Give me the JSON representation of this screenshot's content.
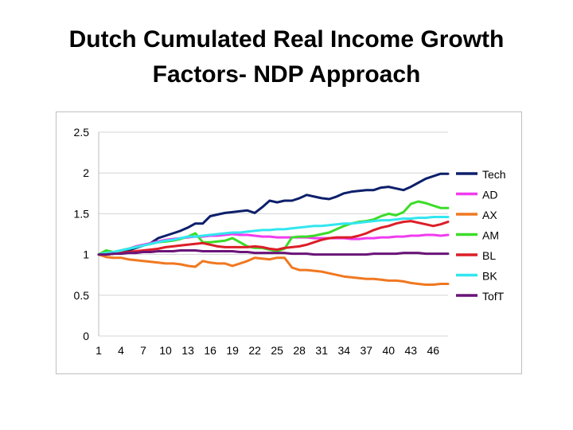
{
  "slide": {
    "title_line1": "Dutch Cumulated Real Income Growth",
    "title_line2": "Factors- NDP Approach"
  },
  "chart_data": {
    "type": "line",
    "title": "",
    "xlabel": "",
    "ylabel": "",
    "ylim": [
      0,
      2.5
    ],
    "yticks": [
      "0",
      "0.5",
      "1",
      "1.5",
      "2",
      "2.5"
    ],
    "grid": "horizontal",
    "legend_position": "right",
    "x": [
      1,
      2,
      3,
      4,
      5,
      6,
      7,
      8,
      9,
      10,
      11,
      12,
      13,
      14,
      15,
      16,
      17,
      18,
      19,
      20,
      21,
      22,
      23,
      24,
      25,
      26,
      27,
      28,
      29,
      30,
      31,
      32,
      33,
      34,
      35,
      36,
      37,
      38,
      39,
      40,
      41,
      42,
      43,
      44,
      45,
      46,
      47,
      48
    ],
    "xtick_labels": [
      "1",
      "4",
      "7",
      "10",
      "13",
      "16",
      "19",
      "22",
      "25",
      "28",
      "31",
      "34",
      "37",
      "40",
      "43",
      "46"
    ],
    "series": [
      {
        "name": "Tech",
        "color": "#0d1f6b",
        "values": [
          1.0,
          1.0,
          1.01,
          1.03,
          1.05,
          1.08,
          1.11,
          1.14,
          1.2,
          1.23,
          1.26,
          1.29,
          1.33,
          1.38,
          1.38,
          1.47,
          1.49,
          1.51,
          1.52,
          1.53,
          1.54,
          1.51,
          1.58,
          1.66,
          1.64,
          1.66,
          1.66,
          1.69,
          1.73,
          1.71,
          1.69,
          1.68,
          1.71,
          1.75,
          1.77,
          1.78,
          1.79,
          1.79,
          1.82,
          1.83,
          1.81,
          1.79,
          1.83,
          1.88,
          1.93,
          1.96,
          1.99,
          1.99
        ]
      },
      {
        "name": "AD",
        "color": "#f03cf0",
        "values": [
          1.0,
          1.02,
          1.03,
          1.05,
          1.07,
          1.1,
          1.12,
          1.14,
          1.16,
          1.18,
          1.19,
          1.2,
          1.21,
          1.22,
          1.22,
          1.23,
          1.23,
          1.24,
          1.25,
          1.24,
          1.24,
          1.23,
          1.22,
          1.22,
          1.21,
          1.21,
          1.21,
          1.21,
          1.21,
          1.2,
          1.2,
          1.2,
          1.2,
          1.2,
          1.19,
          1.19,
          1.2,
          1.2,
          1.21,
          1.21,
          1.22,
          1.22,
          1.23,
          1.23,
          1.24,
          1.24,
          1.23,
          1.24
        ]
      },
      {
        "name": "AX",
        "color": "#f07820",
        "values": [
          1.0,
          0.97,
          0.96,
          0.96,
          0.94,
          0.93,
          0.92,
          0.91,
          0.9,
          0.89,
          0.89,
          0.88,
          0.86,
          0.85,
          0.92,
          0.9,
          0.89,
          0.89,
          0.86,
          0.89,
          0.92,
          0.96,
          0.95,
          0.94,
          0.96,
          0.96,
          0.84,
          0.81,
          0.81,
          0.8,
          0.79,
          0.77,
          0.75,
          0.73,
          0.72,
          0.71,
          0.7,
          0.7,
          0.69,
          0.68,
          0.68,
          0.67,
          0.65,
          0.64,
          0.63,
          0.63,
          0.64,
          0.64
        ]
      },
      {
        "name": "AM",
        "color": "#3cdc28",
        "values": [
          1.0,
          1.05,
          1.03,
          1.05,
          1.07,
          1.09,
          1.11,
          1.13,
          1.15,
          1.16,
          1.17,
          1.19,
          1.22,
          1.26,
          1.15,
          1.15,
          1.16,
          1.17,
          1.2,
          1.15,
          1.1,
          1.08,
          1.08,
          1.06,
          1.04,
          1.07,
          1.21,
          1.22,
          1.22,
          1.23,
          1.25,
          1.27,
          1.31,
          1.35,
          1.38,
          1.4,
          1.41,
          1.43,
          1.47,
          1.5,
          1.48,
          1.52,
          1.62,
          1.65,
          1.63,
          1.6,
          1.57,
          1.57
        ]
      },
      {
        "name": "BL",
        "color": "#dc1e28",
        "values": [
          1.0,
          1.0,
          1.01,
          1.02,
          1.03,
          1.04,
          1.05,
          1.06,
          1.07,
          1.09,
          1.1,
          1.11,
          1.12,
          1.13,
          1.14,
          1.12,
          1.1,
          1.09,
          1.09,
          1.09,
          1.09,
          1.1,
          1.09,
          1.07,
          1.06,
          1.08,
          1.09,
          1.1,
          1.12,
          1.15,
          1.18,
          1.2,
          1.21,
          1.21,
          1.21,
          1.23,
          1.26,
          1.3,
          1.33,
          1.35,
          1.38,
          1.4,
          1.41,
          1.39,
          1.37,
          1.35,
          1.37,
          1.4
        ]
      },
      {
        "name": "BK",
        "color": "#32e6f0",
        "values": [
          1.0,
          1.02,
          1.03,
          1.05,
          1.07,
          1.09,
          1.11,
          1.13,
          1.15,
          1.17,
          1.18,
          1.2,
          1.22,
          1.22,
          1.23,
          1.24,
          1.25,
          1.26,
          1.27,
          1.27,
          1.28,
          1.29,
          1.3,
          1.3,
          1.31,
          1.31,
          1.32,
          1.33,
          1.34,
          1.35,
          1.35,
          1.36,
          1.37,
          1.38,
          1.38,
          1.39,
          1.4,
          1.41,
          1.42,
          1.42,
          1.43,
          1.44,
          1.44,
          1.45,
          1.45,
          1.46,
          1.46,
          1.46
        ]
      },
      {
        "name": "TofT",
        "color": "#6a1478",
        "values": [
          1.0,
          1.0,
          1.01,
          1.01,
          1.02,
          1.02,
          1.03,
          1.03,
          1.04,
          1.04,
          1.04,
          1.05,
          1.05,
          1.05,
          1.04,
          1.04,
          1.04,
          1.04,
          1.04,
          1.03,
          1.03,
          1.02,
          1.02,
          1.02,
          1.02,
          1.02,
          1.01,
          1.01,
          1.01,
          1.0,
          1.0,
          1.0,
          1.0,
          1.0,
          1.0,
          1.0,
          1.0,
          1.01,
          1.01,
          1.01,
          1.01,
          1.02,
          1.02,
          1.02,
          1.01,
          1.01,
          1.01,
          1.01
        ]
      }
    ]
  }
}
